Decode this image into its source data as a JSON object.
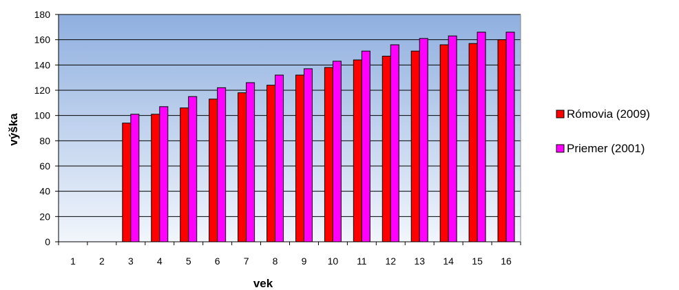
{
  "chart_data": {
    "type": "bar",
    "xlabel": "vek",
    "ylabel": "výška",
    "ylim": [
      0,
      180
    ],
    "ytick_step": 20,
    "grid": true,
    "legend_position": "right",
    "categories": [
      "1",
      "2",
      "3",
      "4",
      "5",
      "6",
      "7",
      "8",
      "9",
      "10",
      "11",
      "12",
      "13",
      "14",
      "15",
      "16"
    ],
    "series": [
      {
        "name": "Rómovia (2009)",
        "color": "#ff0000",
        "values": [
          null,
          null,
          94,
          101,
          106,
          113,
          118,
          124,
          132,
          138,
          144,
          147,
          151,
          156,
          157,
          160
        ]
      },
      {
        "name": "Priemer (2001)",
        "color": "#ff00ff",
        "values": [
          null,
          null,
          101,
          107,
          115,
          122,
          126,
          132,
          137,
          143,
          151,
          156,
          161,
          163,
          166,
          166
        ]
      }
    ],
    "colors": {
      "plot_top": "#8fafdf",
      "plot_bottom": "#f2f6fc",
      "gridline": "#000000"
    }
  }
}
